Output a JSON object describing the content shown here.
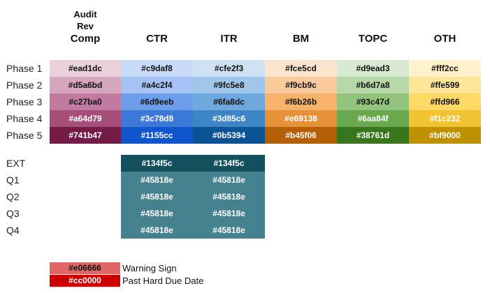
{
  "headers": [
    {
      "lines": [
        "Audit",
        "Rev",
        "Comp"
      ]
    },
    {
      "lines": [
        "CTR"
      ]
    },
    {
      "lines": [
        "ITR"
      ]
    },
    {
      "lines": [
        "BM"
      ]
    },
    {
      "lines": [
        "TOPC"
      ]
    },
    {
      "lines": [
        "OTH"
      ]
    }
  ],
  "phases": [
    {
      "label": "Phase 1",
      "colors": [
        "#ead1dc",
        "#c9daf8",
        "#cfe2f3",
        "#fce5cd",
        "#d9ead3",
        "#fff2cc"
      ],
      "text_color": "#111111"
    },
    {
      "label": "Phase 2",
      "colors": [
        "#d5a6bd",
        "#a4c2f4",
        "#9fc5e8",
        "#f9cb9c",
        "#b6d7a8",
        "#ffe599"
      ],
      "text_color": "#111111"
    },
    {
      "label": "Phase 3",
      "colors": [
        "#c27ba0",
        "#6d9eeb",
        "#6fa8dc",
        "#f6b26b",
        "#93c47d",
        "#ffd966"
      ],
      "text_color": "#111111"
    },
    {
      "label": "Phase 4",
      "colors": [
        "#a64d79",
        "#3c78d8",
        "#3d85c6",
        "#e69138",
        "#6aa84f",
        "#f1c232"
      ],
      "text_color": "#ffffff"
    },
    {
      "label": "Phase 5",
      "colors": [
        "#741b47",
        "#1155cc",
        "#0b5394",
        "#b45f06",
        "#38761d",
        "#bf9000"
      ],
      "text_color": "#ffffff"
    }
  ],
  "ext_rows": [
    {
      "label": "EXT",
      "colors": [
        "#134f5c",
        "#134f5c"
      ]
    },
    {
      "label": "Q1",
      "colors": [
        "#45818e",
        "#45818e"
      ]
    },
    {
      "label": "Q2",
      "colors": [
        "#45818e",
        "#45818e"
      ]
    },
    {
      "label": "Q3",
      "colors": [
        "#45818e",
        "#45818e"
      ]
    },
    {
      "label": "Q4",
      "colors": [
        "#45818e",
        "#45818e"
      ]
    }
  ],
  "legend": [
    {
      "color": "#e06666",
      "text": "Warning Sign",
      "text_color": "#111111"
    },
    {
      "color": "#cc0000",
      "text": "Past Hard Due Date",
      "text_color": "#ffffff"
    }
  ]
}
